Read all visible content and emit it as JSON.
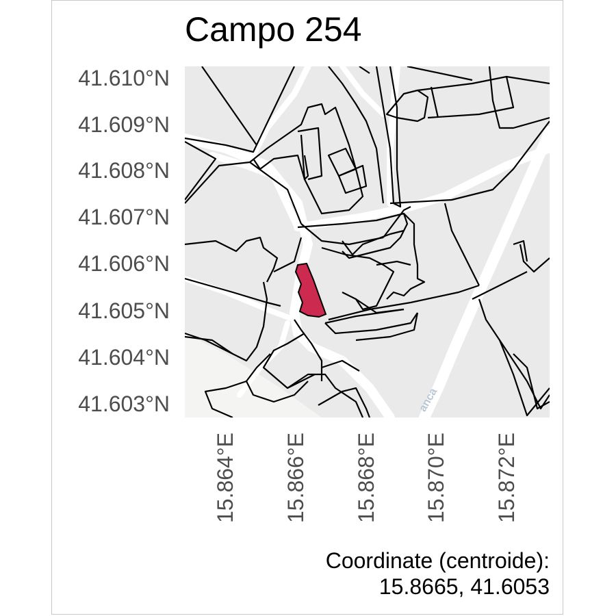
{
  "title": "Campo 254",
  "y_ticks": [
    "41.610°N",
    "41.609°N",
    "41.608°N",
    "41.607°N",
    "41.606°N",
    "41.605°N",
    "41.604°N",
    "41.603°N"
  ],
  "x_ticks": [
    "15.864°E",
    "15.866°E",
    "15.868°E",
    "15.870°E",
    "15.872°E"
  ],
  "caption": {
    "line1": "Coordinate (centroide):",
    "line2": "15.8665, 41.6053"
  },
  "basemap_label": "anca",
  "colors": {
    "highlight": "#cc2a4e",
    "parcel_fill": "#ebebeb",
    "road": "#ffffff",
    "outline": "#000000"
  }
}
